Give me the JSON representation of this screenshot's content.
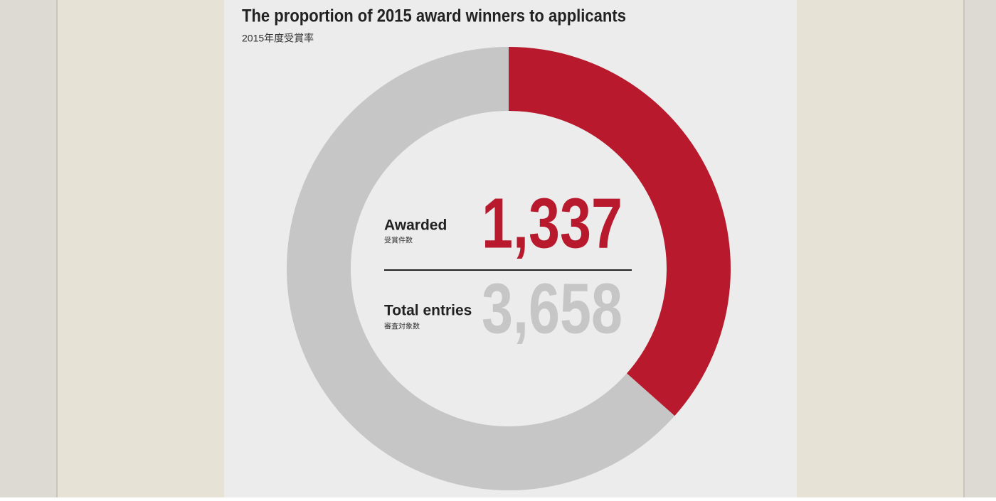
{
  "chart_data": {
    "type": "donut",
    "title": "The proportion of 2015 award winners to applicants",
    "subtitle": "2015年度受賞率",
    "categories": [
      "Awarded",
      "Total entries"
    ],
    "sublabels": [
      "受賞件数",
      "審査対象数"
    ],
    "values": [
      1337,
      3658
    ],
    "value_labels": [
      "1,337",
      "3,658"
    ],
    "colors": [
      "#b8192c",
      "#c6c6c6"
    ]
  }
}
